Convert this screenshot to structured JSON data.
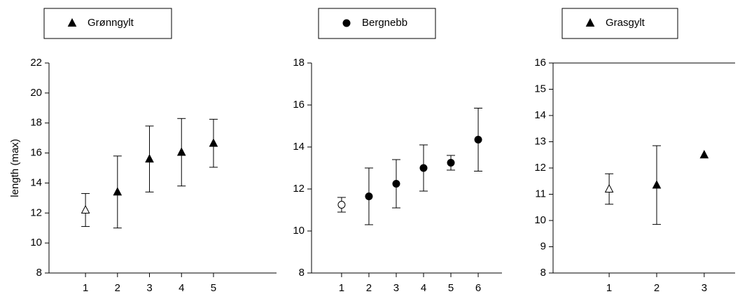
{
  "chart_data": [
    {
      "type": "errorbar",
      "ylabel": "length (max)",
      "xlim": [
        -0.14,
        6.97
      ],
      "xticks": [
        1,
        2,
        3,
        4,
        5
      ],
      "ylim": [
        8,
        22
      ],
      "yticks": [
        8,
        10,
        12,
        14,
        16,
        18,
        20,
        22
      ],
      "series": [
        {
          "name": "Grønngylt",
          "marker": "triangle",
          "color": "#000000",
          "x": [
            1,
            2,
            3,
            4,
            5
          ],
          "values": [
            12.2,
            13.4,
            15.6,
            16.05,
            16.65
          ],
          "errors": [
            1.1,
            2.4,
            2.2,
            2.25,
            1.6
          ],
          "filled": [
            false,
            true,
            true,
            true,
            true
          ]
        }
      ]
    },
    {
      "type": "errorbar",
      "xlim": [
        -0.1,
        6.87
      ],
      "xticks": [
        1,
        2,
        3,
        4,
        5,
        6
      ],
      "ylim": [
        8,
        18
      ],
      "yticks": [
        8,
        10,
        12,
        14,
        16,
        18
      ],
      "series": [
        {
          "name": "Bergnebb",
          "marker": "circle",
          "color": "#000000",
          "x": [
            1,
            2,
            3,
            4,
            5,
            6
          ],
          "values": [
            11.25,
            11.65,
            12.25,
            13.0,
            13.25,
            14.35
          ],
          "errors": [
            0.35,
            1.35,
            1.15,
            1.1,
            0.35,
            1.5
          ],
          "filled": [
            false,
            true,
            true,
            true,
            true,
            true
          ]
        }
      ]
    },
    {
      "type": "errorbar",
      "top_spine": true,
      "xlim": [
        -0.18,
        3.65
      ],
      "xticks": [
        1,
        2,
        3
      ],
      "ylim": [
        8,
        16
      ],
      "yticks": [
        8,
        9,
        10,
        11,
        12,
        13,
        14,
        15,
        16
      ],
      "series": [
        {
          "name": "Grasgylt",
          "marker": "triangle",
          "color": "#000000",
          "x": [
            1,
            2,
            3
          ],
          "values": [
            11.2,
            11.35,
            12.5
          ],
          "errors": [
            0.58,
            1.5,
            null
          ],
          "filled": [
            false,
            true,
            true
          ]
        }
      ]
    }
  ]
}
